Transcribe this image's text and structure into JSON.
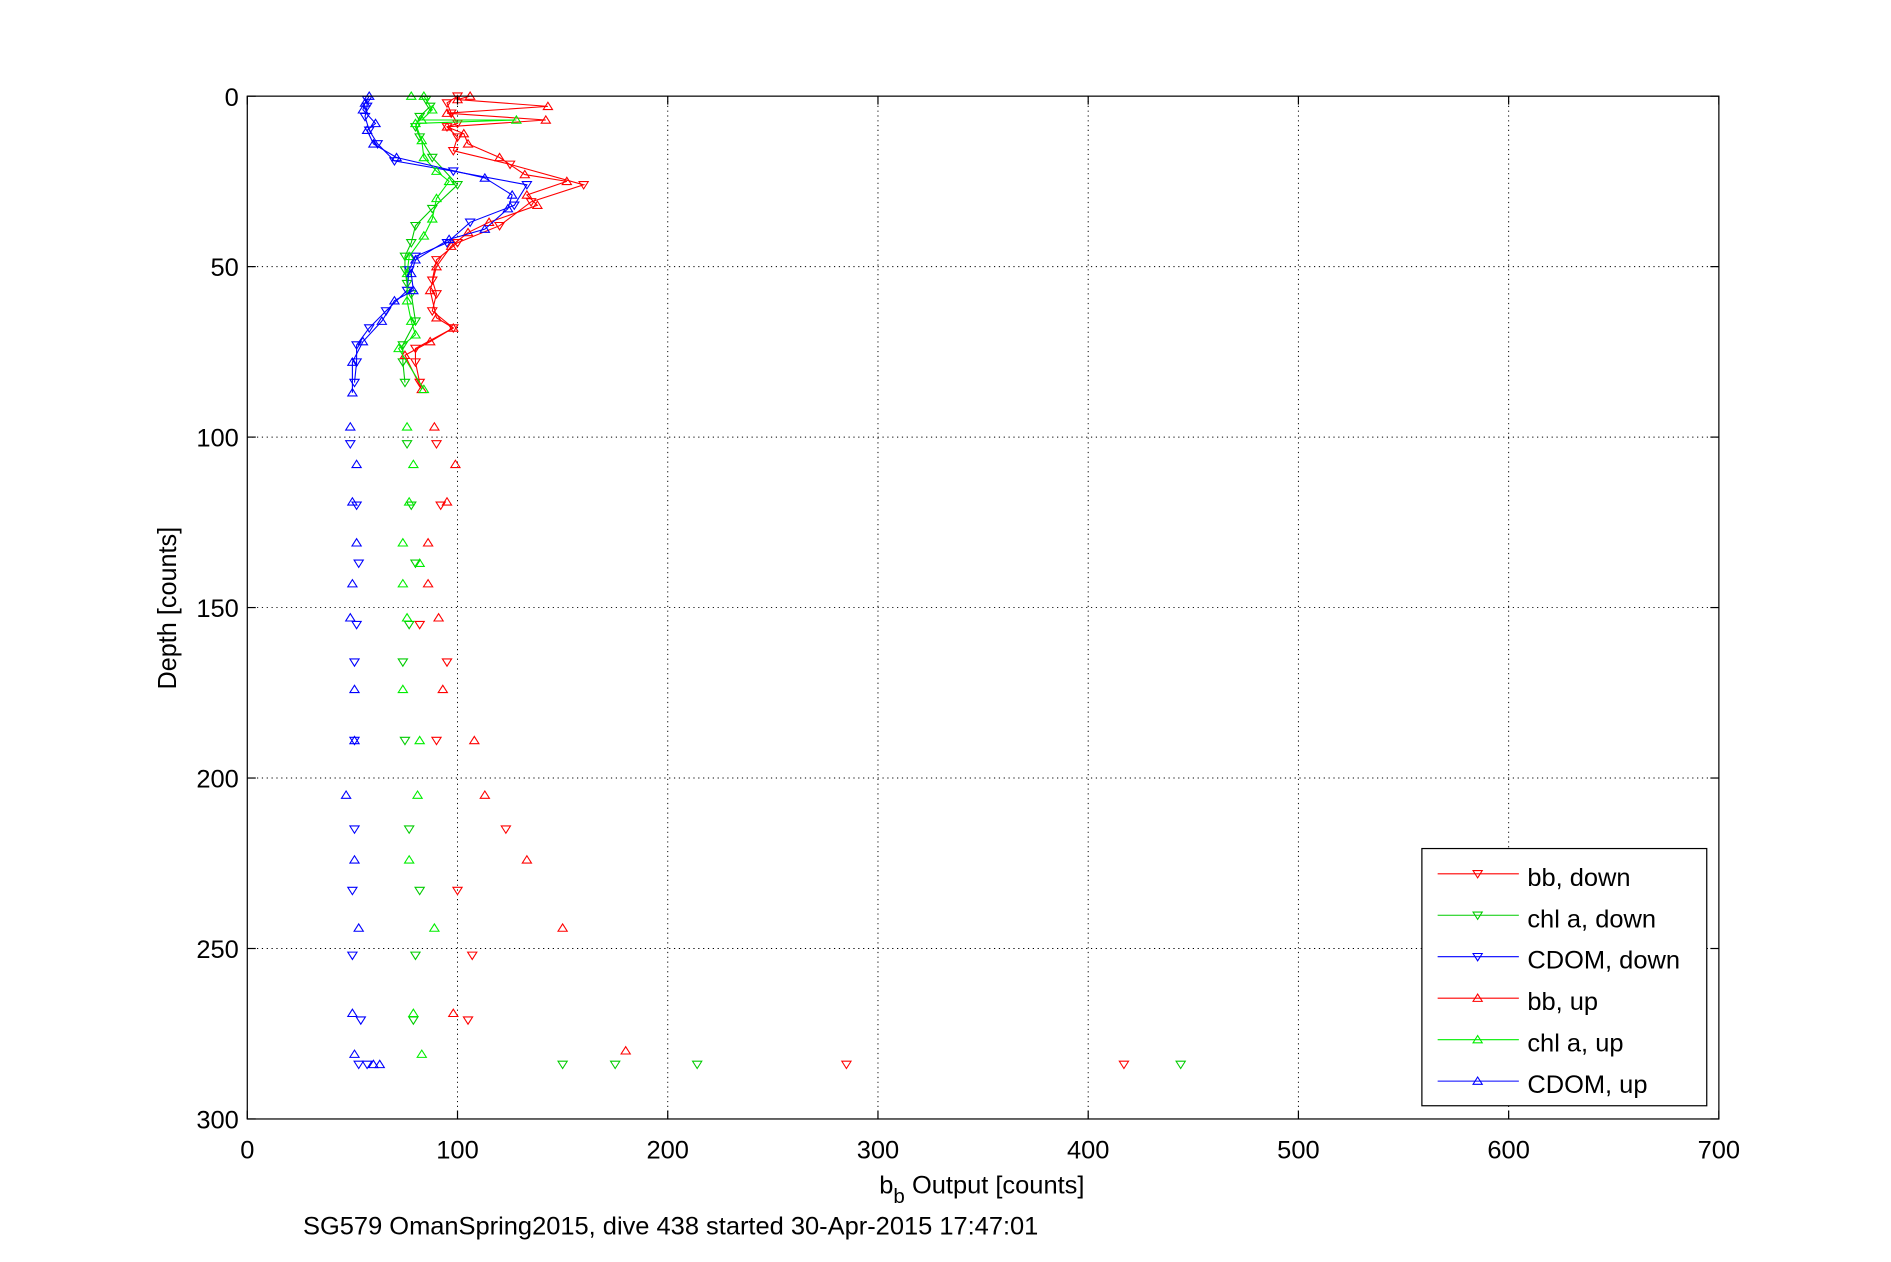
{
  "chart_data": {
    "type": "scatter",
    "title": "",
    "subtitle": "SG579 OmanSpring2015, dive 438 started 30-Apr-2015 17:47:01",
    "xlabel_main": "b",
    "xlabel_sub": "b",
    "xlabel_rest": " Output [counts]",
    "ylabel": "Depth [counts]",
    "xlim": [
      0,
      700
    ],
    "ylim": [
      0,
      300
    ],
    "y_reversed": true,
    "grid": true,
    "xticks": [
      0,
      100,
      200,
      300,
      400,
      500,
      600,
      700
    ],
    "yticks": [
      0,
      50,
      100,
      150,
      200,
      250,
      300
    ],
    "legend_position": "bottom-right",
    "line_depth_limit": 90,
    "series": [
      {
        "name": "bb, down",
        "color": "#ff0000",
        "marker": "down",
        "points": [
          [
            100,
            0
          ],
          [
            95,
            2
          ],
          [
            97,
            5
          ],
          [
            100,
            8
          ],
          [
            95,
            9
          ],
          [
            100,
            12
          ],
          [
            98,
            16
          ],
          [
            125,
            20
          ],
          [
            160,
            26
          ],
          [
            135,
            31
          ],
          [
            120,
            38
          ],
          [
            100,
            43
          ],
          [
            90,
            48
          ],
          [
            88,
            54
          ],
          [
            90,
            58
          ],
          [
            88,
            63
          ],
          [
            98,
            68
          ],
          [
            80,
            74
          ],
          [
            80,
            78
          ],
          [
            82,
            84
          ],
          [
            90,
            102
          ],
          [
            92,
            120
          ],
          [
            82,
            155
          ],
          [
            95,
            166
          ],
          [
            90,
            189
          ],
          [
            123,
            215
          ],
          [
            100,
            233
          ],
          [
            107,
            252
          ],
          [
            105,
            271
          ],
          [
            285,
            284
          ],
          [
            417,
            284
          ]
        ]
      },
      {
        "name": "chl a, down",
        "color": "#00cc00",
        "marker": "down",
        "points": [
          [
            85,
            1
          ],
          [
            87,
            3
          ],
          [
            82,
            6
          ],
          [
            80,
            9
          ],
          [
            82,
            12
          ],
          [
            88,
            18
          ],
          [
            100,
            26
          ],
          [
            88,
            33
          ],
          [
            80,
            38
          ],
          [
            78,
            43
          ],
          [
            75,
            47
          ],
          [
            75,
            51
          ],
          [
            76,
            55
          ],
          [
            78,
            58
          ],
          [
            80,
            66
          ],
          [
            74,
            73
          ],
          [
            74,
            78
          ],
          [
            75,
            84
          ],
          [
            76,
            102
          ],
          [
            78,
            120
          ],
          [
            80,
            137
          ],
          [
            77,
            155
          ],
          [
            74,
            166
          ],
          [
            75,
            189
          ],
          [
            77,
            215
          ],
          [
            82,
            233
          ],
          [
            80,
            252
          ],
          [
            79,
            271
          ],
          [
            150,
            284
          ],
          [
            175,
            284
          ],
          [
            214,
            284
          ],
          [
            444,
            284
          ]
        ]
      },
      {
        "name": "CDOM, down",
        "color": "#0000ff",
        "marker": "down",
        "points": [
          [
            57,
            1
          ],
          [
            57,
            3
          ],
          [
            56,
            6
          ],
          [
            58,
            10
          ],
          [
            62,
            14
          ],
          [
            70,
            19
          ],
          [
            98,
            22
          ],
          [
            133,
            26
          ],
          [
            127,
            32
          ],
          [
            106,
            37
          ],
          [
            95,
            43
          ],
          [
            80,
            47
          ],
          [
            77,
            51
          ],
          [
            76,
            57
          ],
          [
            66,
            63
          ],
          [
            58,
            68
          ],
          [
            52,
            73
          ],
          [
            52,
            78
          ],
          [
            51,
            84
          ],
          [
            49,
            102
          ],
          [
            52,
            120
          ],
          [
            53,
            137
          ],
          [
            52,
            155
          ],
          [
            51,
            166
          ],
          [
            51,
            189
          ],
          [
            51,
            215
          ],
          [
            50,
            233
          ],
          [
            50,
            252
          ],
          [
            54,
            271
          ],
          [
            53,
            284
          ],
          [
            57,
            284
          ]
        ]
      },
      {
        "name": "bb, up",
        "color": "#ff0000",
        "marker": "up",
        "points": [
          [
            106,
            0
          ],
          [
            100,
            1
          ],
          [
            143,
            3
          ],
          [
            95,
            5
          ],
          [
            142,
            7
          ],
          [
            95,
            9
          ],
          [
            103,
            11
          ],
          [
            105,
            14
          ],
          [
            120,
            18
          ],
          [
            132,
            23
          ],
          [
            152,
            25
          ],
          [
            133,
            29
          ],
          [
            138,
            32
          ],
          [
            115,
            37
          ],
          [
            105,
            40
          ],
          [
            97,
            44
          ],
          [
            90,
            50
          ],
          [
            87,
            57
          ],
          [
            90,
            65
          ],
          [
            98,
            68
          ],
          [
            87,
            72
          ],
          [
            75,
            76
          ],
          [
            83,
            86
          ],
          [
            89,
            97
          ],
          [
            99,
            108
          ],
          [
            95,
            119
          ],
          [
            86,
            131
          ],
          [
            86,
            143
          ],
          [
            91,
            153
          ],
          [
            93,
            174
          ],
          [
            108,
            189
          ],
          [
            113,
            205
          ],
          [
            133,
            224
          ],
          [
            150,
            244
          ],
          [
            98,
            269
          ],
          [
            180,
            280
          ]
        ]
      },
      {
        "name": "chl a, up",
        "color": "#00ee00",
        "marker": "up",
        "points": [
          [
            78,
            0
          ],
          [
            84,
            0
          ],
          [
            88,
            4
          ],
          [
            83,
            7
          ],
          [
            128,
            7
          ],
          [
            80,
            8
          ],
          [
            83,
            13
          ],
          [
            84,
            18
          ],
          [
            90,
            22
          ],
          [
            96,
            25
          ],
          [
            90,
            30
          ],
          [
            88,
            36
          ],
          [
            84,
            41
          ],
          [
            77,
            47
          ],
          [
            76,
            52
          ],
          [
            76,
            60
          ],
          [
            78,
            66
          ],
          [
            80,
            70
          ],
          [
            72,
            74
          ],
          [
            84,
            86
          ],
          [
            76,
            97
          ],
          [
            79,
            108
          ],
          [
            77,
            119
          ],
          [
            74,
            131
          ],
          [
            82,
            137
          ],
          [
            74,
            143
          ],
          [
            76,
            153
          ],
          [
            74,
            174
          ],
          [
            82,
            189
          ],
          [
            81,
            205
          ],
          [
            77,
            224
          ],
          [
            89,
            244
          ],
          [
            79,
            269
          ],
          [
            83,
            281
          ]
        ]
      },
      {
        "name": "CDOM, up",
        "color": "#0000ff",
        "marker": "up",
        "points": [
          [
            58,
            0
          ],
          [
            56,
            2
          ],
          [
            55,
            4
          ],
          [
            61,
            8
          ],
          [
            57,
            10
          ],
          [
            60,
            14
          ],
          [
            71,
            18
          ],
          [
            113,
            24
          ],
          [
            126,
            29
          ],
          [
            124,
            33
          ],
          [
            113,
            39
          ],
          [
            96,
            42
          ],
          [
            80,
            48
          ],
          [
            78,
            52
          ],
          [
            79,
            57
          ],
          [
            70,
            60
          ],
          [
            64,
            66
          ],
          [
            55,
            72
          ],
          [
            50,
            78
          ],
          [
            50,
            87
          ],
          [
            49,
            97
          ],
          [
            52,
            108
          ],
          [
            50,
            119
          ],
          [
            52,
            131
          ],
          [
            50,
            143
          ],
          [
            49,
            153
          ],
          [
            51,
            174
          ],
          [
            51,
            189
          ],
          [
            47,
            205
          ],
          [
            51,
            224
          ],
          [
            53,
            244
          ],
          [
            50,
            269
          ],
          [
            51,
            281
          ],
          [
            60,
            284
          ],
          [
            63,
            284
          ]
        ]
      }
    ]
  }
}
